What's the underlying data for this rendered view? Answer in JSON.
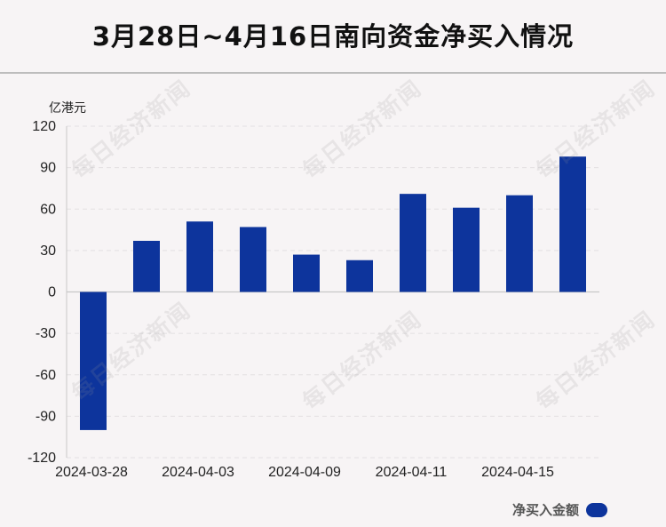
{
  "title": "3月28日~4月16日南向资金净买入情况",
  "watermark_text": "每日经济新闻",
  "colors": {
    "bar": "#0d349c",
    "axis": "#c8c8c8",
    "grid": "#e3e0e2",
    "text": "#222222"
  },
  "legend": {
    "label": "净买入金额",
    "placement": "bottom-right"
  },
  "chart_data": {
    "type": "bar",
    "ylabel": "亿港元",
    "ylim": [
      -120,
      120
    ],
    "yticks": [
      120,
      90,
      60,
      30,
      0,
      -30,
      -60,
      -90,
      -120
    ],
    "x_tick_labels": [
      "2024-03-28",
      "2024-04-03",
      "2024-04-09",
      "2024-04-11",
      "2024-04-15"
    ],
    "series": [
      {
        "name": "净买入金额",
        "values": [
          -100,
          37,
          51,
          47,
          27,
          23,
          71,
          61,
          70,
          98
        ]
      }
    ],
    "grid": true
  }
}
